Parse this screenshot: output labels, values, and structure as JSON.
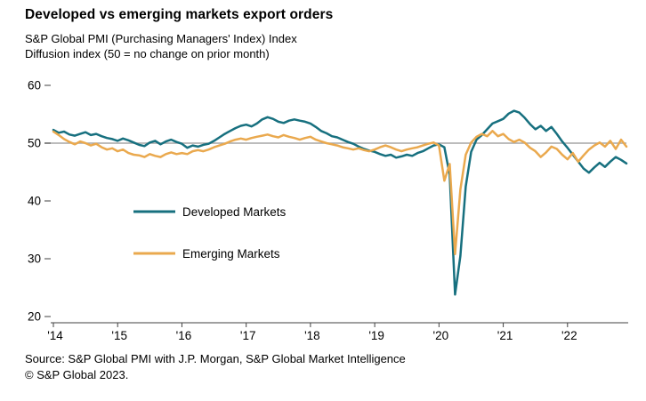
{
  "chart_data": {
    "type": "line",
    "title": "Developed vs emerging markets export orders",
    "subtitle1": "S&P Global PMI (Purchasing Managers' Index) Index",
    "subtitle2": "Diffusion index (50 = no change on prior month)",
    "x_unit": "month",
    "x_start": "2014-01",
    "x_end": "2022-12",
    "x_tick_labels": [
      "'14",
      "'15",
      "'16",
      "'17",
      "'18",
      "'19",
      "'20",
      "'21",
      "'22"
    ],
    "y_ticks": [
      60,
      50,
      40,
      30,
      20
    ],
    "ylim": [
      20,
      60
    ],
    "reference_line": 50,
    "grid": "reference-line-only",
    "legend_position": "inside-left-middle",
    "axis_color": "#404040",
    "reference_line_color": "#a6a6a6",
    "series": [
      {
        "name": "Developed Markets",
        "color": "#17707f",
        "values": [
          52.3,
          51.8,
          52.0,
          51.5,
          51.3,
          51.6,
          51.9,
          51.4,
          51.6,
          51.2,
          50.9,
          50.7,
          50.4,
          50.8,
          50.5,
          50.1,
          49.7,
          49.5,
          50.1,
          50.4,
          49.8,
          50.3,
          50.6,
          50.2,
          49.9,
          49.2,
          49.6,
          49.4,
          49.7,
          49.9,
          50.4,
          51.0,
          51.6,
          52.1,
          52.6,
          53.0,
          53.2,
          52.9,
          53.4,
          54.1,
          54.5,
          54.2,
          53.7,
          53.5,
          53.9,
          54.1,
          53.9,
          53.7,
          53.4,
          52.8,
          52.1,
          51.7,
          51.2,
          51.0,
          50.6,
          50.2,
          49.9,
          49.4,
          49.0,
          48.7,
          48.5,
          48.1,
          47.8,
          48.0,
          47.5,
          47.7,
          48.0,
          47.8,
          48.3,
          48.6,
          49.1,
          49.6,
          49.8,
          49.3,
          44.5,
          23.8,
          30.5,
          42.5,
          48.5,
          50.6,
          51.4,
          52.4,
          53.4,
          53.8,
          54.2,
          55.1,
          55.6,
          55.3,
          54.4,
          53.3,
          52.4,
          53.0,
          52.1,
          52.8,
          51.6,
          50.3,
          49.2,
          48.0,
          46.8,
          45.6,
          44.9,
          45.8,
          46.6,
          45.9,
          46.8,
          47.6,
          47.1,
          46.5
        ]
      },
      {
        "name": "Emerging Markets",
        "color": "#eaa94e",
        "values": [
          52.0,
          51.4,
          50.7,
          50.2,
          49.8,
          50.3,
          50.0,
          49.6,
          49.9,
          49.3,
          48.9,
          49.1,
          48.6,
          48.9,
          48.3,
          48.0,
          47.9,
          47.6,
          48.1,
          47.8,
          47.6,
          48.1,
          48.4,
          48.1,
          48.3,
          48.1,
          48.6,
          48.8,
          48.6,
          48.9,
          49.3,
          49.6,
          49.9,
          50.3,
          50.6,
          50.8,
          50.6,
          50.9,
          51.1,
          51.3,
          51.5,
          51.2,
          51.0,
          51.4,
          51.1,
          50.9,
          50.6,
          50.9,
          51.1,
          50.6,
          50.3,
          50.0,
          49.8,
          49.6,
          49.3,
          49.1,
          48.9,
          49.1,
          48.8,
          48.6,
          48.9,
          49.3,
          49.6,
          49.3,
          48.9,
          48.6,
          48.9,
          49.1,
          49.3,
          49.6,
          49.9,
          50.1,
          49.6,
          43.5,
          46.4,
          30.8,
          42.0,
          48.0,
          50.1,
          51.1,
          51.6,
          51.2,
          52.1,
          51.2,
          51.6,
          50.7,
          50.2,
          50.6,
          50.1,
          49.2,
          48.6,
          47.6,
          48.4,
          49.4,
          49.0,
          48.0,
          47.2,
          48.3,
          46.8,
          47.9,
          48.9,
          49.6,
          50.1,
          49.4,
          50.4,
          49.0,
          50.6,
          49.4
        ]
      }
    ]
  },
  "footer": {
    "source": "Source: S&P Global PMI with J.P. Morgan, S&P Global Market Intelligence",
    "copyright": "© S&P Global 2023."
  }
}
